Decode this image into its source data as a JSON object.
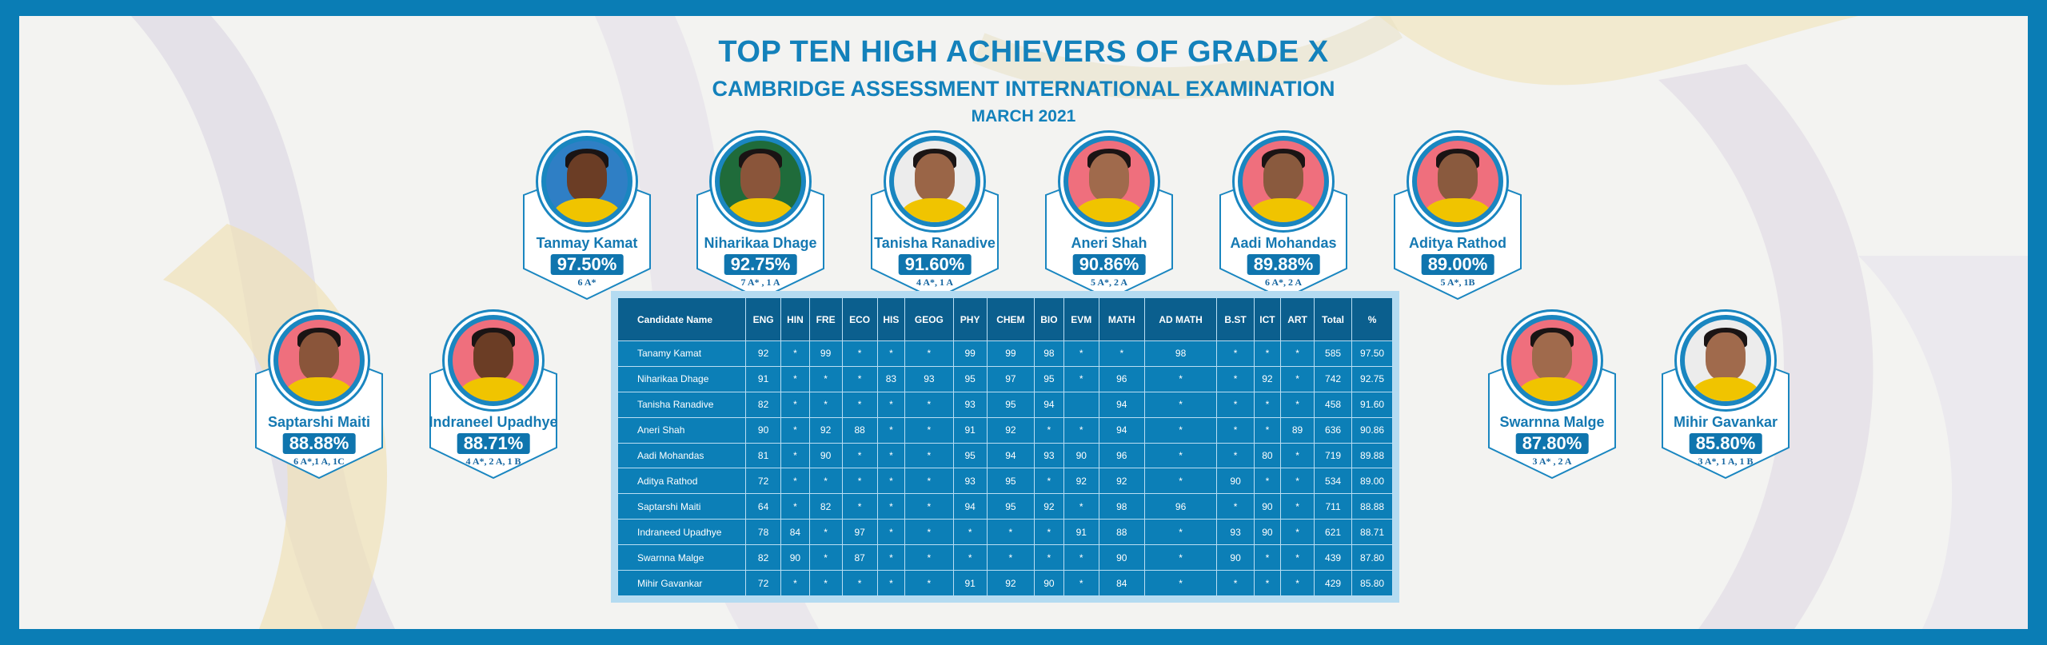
{
  "header": {
    "title": "TOP TEN HIGH ACHIEVERS OF GRADE X",
    "subtitle": "CAMBRIDGE ASSESSMENT INTERNATIONAL EXAMINATION",
    "date": "MARCH 2021"
  },
  "colors": {
    "frame": "#0a7db5",
    "accent": "#1381bb",
    "table": "#0c7fb7",
    "table_header": "#0b5f8e"
  },
  "achievers": [
    {
      "name": "Tanmay Kamat",
      "percent": "97.50%",
      "grades": "6 A*"
    },
    {
      "name": "Niharikaa Dhage",
      "percent": "92.75%",
      "grades": "7 A* , 1 A"
    },
    {
      "name": "Tanisha Ranadive",
      "percent": "91.60%",
      "grades": "4 A*, 1 A"
    },
    {
      "name": "Aneri Shah",
      "percent": "90.86%",
      "grades": "5 A*, 2 A"
    },
    {
      "name": "Aadi Mohandas",
      "percent": "89.88%",
      "grades": "6 A*, 2 A"
    },
    {
      "name": "Aditya Rathod",
      "percent": "89.00%",
      "grades": "5 A*, 1B"
    },
    {
      "name": "Saptarshi Maiti",
      "percent": "88.88%",
      "grades": "6 A*,1 A, 1C"
    },
    {
      "name": "Indraneel Upadhye",
      "percent": "88.71%",
      "grades": "4 A*, 2 A, 1 B"
    },
    {
      "name": "Swarnna Malge",
      "percent": "87.80%",
      "grades": "3 A* , 2 A"
    },
    {
      "name": "Mihir Gavankar",
      "percent": "85.80%",
      "grades": "3 A*, 1 A, 1 B"
    }
  ],
  "table": {
    "headers": [
      "Candidate Name",
      "ENG",
      "HIN",
      "FRE",
      "ECO",
      "HIS",
      "GEOG",
      "PHY",
      "CHEM",
      "BIO",
      "EVM",
      "MATH",
      "AD MATH",
      "B.ST",
      "ICT",
      "ART",
      "Total",
      "%"
    ],
    "rows": [
      [
        "Tanamy Kamat",
        "92",
        "*",
        "99",
        "*",
        "*",
        "*",
        "99",
        "99",
        "98",
        "*",
        "*",
        "98",
        "*",
        "*",
        "*",
        "585",
        "97.50"
      ],
      [
        "Niharikaa Dhage",
        "91",
        "*",
        "*",
        "*",
        "83",
        "93",
        "95",
        "97",
        "95",
        "*",
        "96",
        "*",
        "*",
        "92",
        "*",
        "742",
        "92.75"
      ],
      [
        "Tanisha Ranadive",
        "82",
        "*",
        "*",
        "*",
        "*",
        "*",
        "93",
        "95",
        "94",
        "",
        "94",
        "*",
        "*",
        "*",
        "*",
        "458",
        "91.60"
      ],
      [
        "Aneri Shah",
        "90",
        "*",
        "92",
        "88",
        "*",
        "*",
        "91",
        "92",
        "*",
        "*",
        "94",
        "*",
        "*",
        "*",
        "89",
        "636",
        "90.86"
      ],
      [
        "Aadi Mohandas",
        "81",
        "*",
        "90",
        "*",
        "*",
        "*",
        "95",
        "94",
        "93",
        "90",
        "96",
        "*",
        "*",
        "80",
        "*",
        "719",
        "89.88"
      ],
      [
        "Aditya Rathod",
        "72",
        "*",
        "*",
        "*",
        "*",
        "*",
        "93",
        "95",
        "*",
        "92",
        "92",
        "*",
        "90",
        "*",
        "*",
        "534",
        "89.00"
      ],
      [
        "Saptarshi Maiti",
        "64",
        "*",
        "82",
        "*",
        "*",
        "*",
        "94",
        "95",
        "92",
        "*",
        "98",
        "96",
        "*",
        "90",
        "*",
        "711",
        "88.88"
      ],
      [
        "Indraneed Upadhye",
        "78",
        "84",
        "*",
        "97",
        "*",
        "*",
        "*",
        "*",
        "*",
        "91",
        "88",
        "*",
        "93",
        "90",
        "*",
        "621",
        "88.71"
      ],
      [
        "Swarnna Malge",
        "82",
        "90",
        "*",
        "87",
        "*",
        "*",
        "*",
        "*",
        "*",
        "*",
        "90",
        "*",
        "90",
        "*",
        "*",
        "439",
        "87.80"
      ],
      [
        "Mihir Gavankar",
        "72",
        "*",
        "*",
        "*",
        "*",
        "*",
        "91",
        "92",
        "90",
        "*",
        "84",
        "*",
        "*",
        "*",
        "*",
        "429",
        "85.80"
      ]
    ]
  }
}
